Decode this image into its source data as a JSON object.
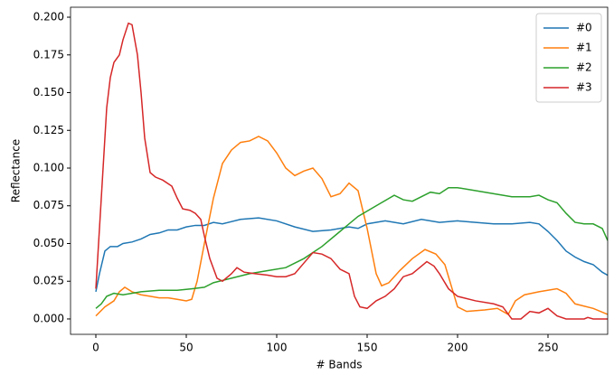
{
  "chart_data": {
    "type": "line",
    "x_label": "# Bands",
    "y_label": "Reflectance",
    "xlim": [
      -14,
      283
    ],
    "ylim": [
      -0.0102,
      0.2066
    ],
    "xticks": [
      0,
      50,
      100,
      150,
      200,
      250
    ],
    "yticks": [
      {
        "value": 0,
        "label": "0.000"
      },
      {
        "value": 0.025,
        "label": "0.025"
      },
      {
        "value": 0.05,
        "label": "0.050"
      },
      {
        "value": 0.075,
        "label": "0.075"
      },
      {
        "value": 0.1,
        "label": "0.100"
      },
      {
        "value": 0.125,
        "label": "0.125"
      },
      {
        "value": 0.15,
        "label": "0.150"
      },
      {
        "value": 0.175,
        "label": "0.175"
      },
      {
        "value": 0.2,
        "label": "0.200"
      }
    ],
    "legend": "upper right",
    "series": [
      {
        "name": "#0",
        "color": "#1f77b4",
        "x": [
          0,
          2,
          5,
          8,
          12,
          15,
          20,
          25,
          30,
          35,
          40,
          45,
          50,
          55,
          60,
          65,
          70,
          80,
          90,
          100,
          110,
          120,
          130,
          140,
          145,
          150,
          160,
          170,
          180,
          190,
          200,
          210,
          220,
          230,
          240,
          245,
          250,
          255,
          260,
          265,
          270,
          275,
          280,
          283
        ],
        "values": [
          0.018,
          0.03,
          0.045,
          0.048,
          0.048,
          0.05,
          0.051,
          0.053,
          0.056,
          0.057,
          0.059,
          0.059,
          0.061,
          0.062,
          0.062,
          0.064,
          0.063,
          0.066,
          0.067,
          0.065,
          0.061,
          0.058,
          0.059,
          0.061,
          0.06,
          0.063,
          0.065,
          0.063,
          0.066,
          0.064,
          0.065,
          0.064,
          0.063,
          0.063,
          0.064,
          0.063,
          0.058,
          0.052,
          0.045,
          0.041,
          0.038,
          0.036,
          0.031,
          0.029
        ]
      },
      {
        "name": "#1",
        "color": "#ff7f0e",
        "x": [
          0,
          5,
          10,
          13,
          16,
          20,
          25,
          30,
          35,
          40,
          45,
          50,
          53,
          56,
          60,
          65,
          70,
          75,
          80,
          85,
          90,
          95,
          100,
          105,
          110,
          115,
          120,
          125,
          130,
          135,
          140,
          145,
          150,
          155,
          158,
          162,
          168,
          175,
          182,
          188,
          193,
          197,
          200,
          205,
          215,
          222,
          228,
          232,
          237,
          245,
          255,
          260,
          265,
          275,
          283
        ],
        "values": [
          0.002,
          0.008,
          0.012,
          0.018,
          0.021,
          0.018,
          0.016,
          0.015,
          0.014,
          0.014,
          0.013,
          0.012,
          0.013,
          0.025,
          0.05,
          0.08,
          0.103,
          0.112,
          0.117,
          0.118,
          0.121,
          0.118,
          0.11,
          0.1,
          0.095,
          0.098,
          0.1,
          0.093,
          0.081,
          0.083,
          0.09,
          0.085,
          0.06,
          0.03,
          0.022,
          0.024,
          0.032,
          0.04,
          0.046,
          0.043,
          0.036,
          0.02,
          0.008,
          0.005,
          0.006,
          0.007,
          0.003,
          0.012,
          0.016,
          0.018,
          0.02,
          0.017,
          0.01,
          0.007,
          0.003
        ]
      },
      {
        "name": "#2",
        "color": "#2ca02c",
        "x": [
          0,
          3,
          6,
          10,
          15,
          25,
          35,
          45,
          53,
          60,
          65,
          75,
          85,
          95,
          105,
          115,
          125,
          135,
          145,
          155,
          165,
          170,
          175,
          185,
          190,
          195,
          200,
          210,
          220,
          230,
          240,
          245,
          250,
          255,
          260,
          265,
          270,
          275,
          280,
          283
        ],
        "values": [
          0.007,
          0.01,
          0.015,
          0.017,
          0.016,
          0.018,
          0.019,
          0.019,
          0.02,
          0.021,
          0.024,
          0.027,
          0.03,
          0.032,
          0.034,
          0.04,
          0.048,
          0.058,
          0.068,
          0.075,
          0.082,
          0.079,
          0.078,
          0.084,
          0.083,
          0.087,
          0.087,
          0.085,
          0.083,
          0.081,
          0.081,
          0.082,
          0.079,
          0.077,
          0.07,
          0.064,
          0.063,
          0.063,
          0.06,
          0.052
        ]
      },
      {
        "name": "#3",
        "color": "#d62728",
        "x": [
          0,
          2,
          4,
          6,
          8,
          10,
          13,
          15,
          18,
          20,
          23,
          25,
          27,
          30,
          33,
          37,
          42,
          45,
          48,
          52,
          55,
          58,
          60,
          63,
          67,
          70,
          75,
          78,
          82,
          88,
          95,
          100,
          105,
          110,
          115,
          120,
          125,
          130,
          135,
          140,
          143,
          146,
          150,
          155,
          160,
          165,
          170,
          175,
          180,
          183,
          187,
          190,
          195,
          200,
          210,
          220,
          225,
          230,
          235,
          240,
          245,
          250,
          255,
          260,
          270,
          272,
          275,
          283
        ],
        "values": [
          0.02,
          0.06,
          0.1,
          0.14,
          0.16,
          0.17,
          0.175,
          0.185,
          0.196,
          0.195,
          0.175,
          0.15,
          0.12,
          0.097,
          0.094,
          0.092,
          0.088,
          0.08,
          0.073,
          0.072,
          0.07,
          0.066,
          0.055,
          0.04,
          0.027,
          0.025,
          0.03,
          0.034,
          0.031,
          0.03,
          0.029,
          0.028,
          0.028,
          0.03,
          0.037,
          0.044,
          0.043,
          0.04,
          0.033,
          0.03,
          0.015,
          0.008,
          0.007,
          0.012,
          0.015,
          0.02,
          0.028,
          0.03,
          0.035,
          0.038,
          0.035,
          0.03,
          0.02,
          0.015,
          0.012,
          0.01,
          0.008,
          0,
          0,
          0.005,
          0.004,
          0.007,
          0.002,
          0,
          0,
          0.001,
          0,
          0
        ]
      }
    ]
  }
}
